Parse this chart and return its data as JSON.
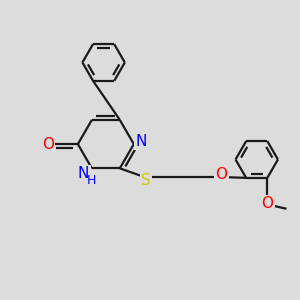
{
  "bg_color": "#dcdcdc",
  "bond_color": "#1a1a1a",
  "N_color": "#0000ff",
  "O_color": "#ff0000",
  "S_color": "#cccc00",
  "line_width": 1.6,
  "font_size": 10,
  "figsize": [
    3.0,
    3.0
  ],
  "dpi": 100,
  "xlim": [
    0,
    10
  ],
  "ylim": [
    0,
    10
  ]
}
